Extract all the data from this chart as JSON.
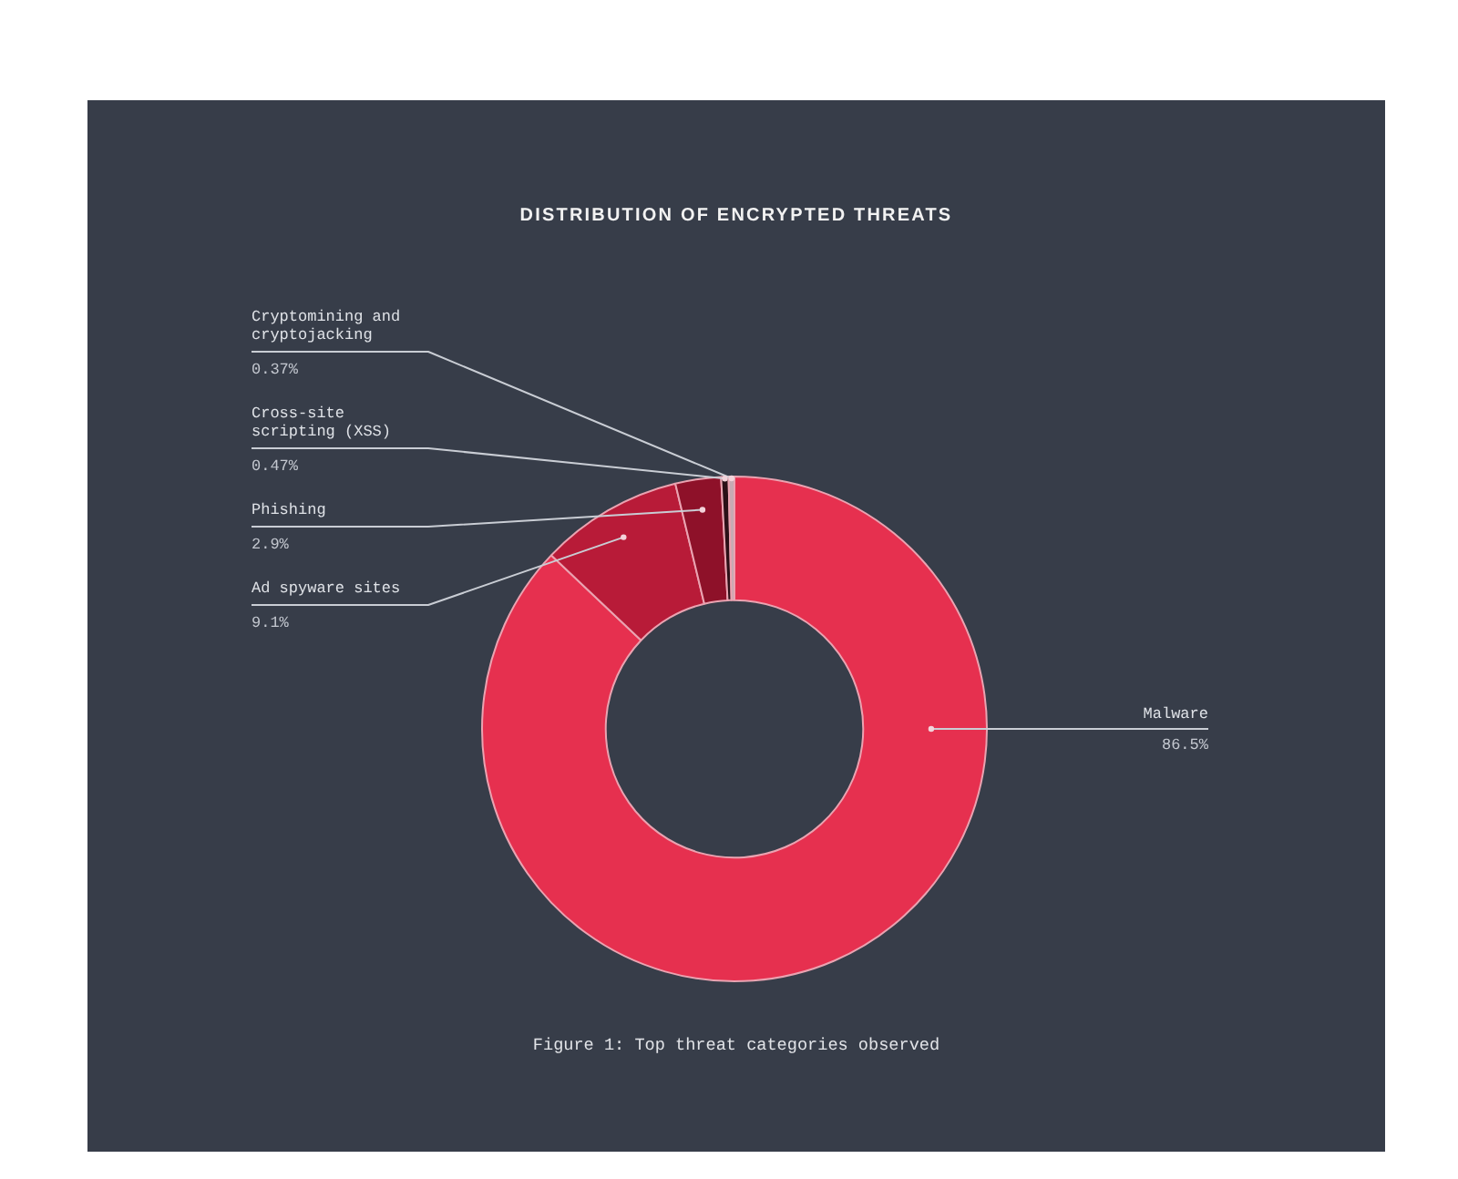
{
  "chart_data": {
    "type": "donut",
    "title": "DISTRIBUTION OF ENCRYPTED THREATS",
    "categories": [
      "Malware",
      "Ad spyware sites",
      "Phishing",
      "Cross-site scripting (XSS)",
      "Cryptomining and cryptojacking"
    ],
    "values": [
      86.5,
      9.1,
      2.9,
      0.47,
      0.37
    ],
    "colors": [
      "#e6304f",
      "#b81b38",
      "#8e1129",
      "#2b1017",
      "#c7aab3"
    ],
    "value_labels": [
      "86.5%",
      "9.1%",
      "2.9%",
      "0.47%",
      "0.37%"
    ],
    "legend": false,
    "annotations": [
      "Figure 1: Top threat categories observed"
    ]
  }
}
